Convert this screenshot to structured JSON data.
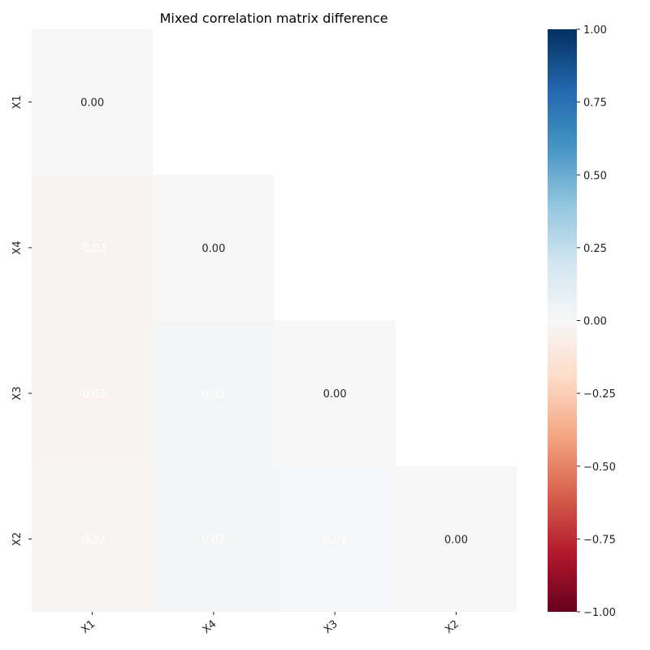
{
  "chart_data": {
    "type": "heatmap",
    "title": "Mixed correlation matrix difference",
    "row_labels": [
      "X1",
      "X4",
      "X3",
      "X2"
    ],
    "col_labels": [
      "X1",
      "X4",
      "X3",
      "X2"
    ],
    "mask": "upper-triangle",
    "values": [
      [
        0.0,
        null,
        null,
        null
      ],
      [
        -0.03,
        0.0,
        null,
        null
      ],
      [
        -0.03,
        0.02,
        0.0,
        null
      ],
      [
        -0.02,
        0.02,
        0.01,
        0.0
      ]
    ],
    "value_labels": [
      [
        "0.00",
        null,
        null,
        null
      ],
      [
        "-0.03",
        "0.00",
        null,
        null
      ],
      [
        "-0.03",
        "0.02",
        "0.00",
        null
      ],
      [
        "-0.02",
        "0.02",
        "0.01",
        "0.00"
      ]
    ],
    "colormap": "RdBu",
    "vmin": -1.0,
    "vmax": 1.0,
    "colorbar_ticks": [
      {
        "value": 1.0,
        "label": "1.00"
      },
      {
        "value": 0.75,
        "label": "0.75"
      },
      {
        "value": 0.5,
        "label": "0.50"
      },
      {
        "value": 0.25,
        "label": "0.25"
      },
      {
        "value": 0.0,
        "label": "0.00"
      },
      {
        "value": -0.25,
        "label": "−0.25"
      },
      {
        "value": -0.5,
        "label": "−0.50"
      },
      {
        "value": -0.75,
        "label": "−0.75"
      },
      {
        "value": -1.0,
        "label": "−1.00"
      }
    ]
  }
}
